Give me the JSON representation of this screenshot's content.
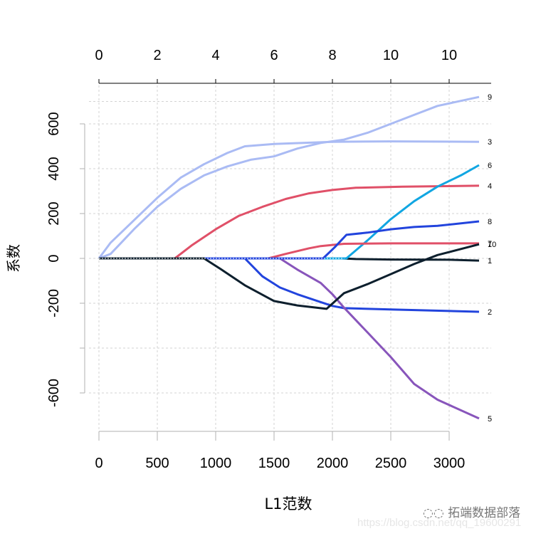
{
  "chart_data": {
    "type": "line",
    "title": "",
    "xlabel": "L1范数",
    "ylabel": "系数",
    "xlim": [
      0,
      3256
    ],
    "ylim": [
      -720,
      720
    ],
    "x_ticks": [
      0,
      500,
      1000,
      1500,
      2000,
      2500,
      3000
    ],
    "y_ticks": [
      600,
      400,
      200,
      0,
      -200,
      -400,
      -600
    ],
    "y_tick_labels": [
      "600",
      "400",
      "200",
      "0",
      "-200",
      "",
      "-600"
    ],
    "top_axis_ticks": [
      0,
      500,
      1000,
      1500,
      2000,
      2500,
      3000
    ],
    "top_axis_labels": [
      "0",
      "2",
      "4",
      "6",
      "8",
      "10",
      "10"
    ],
    "grid": true,
    "series": [
      {
        "name": "1",
        "color": "#0d1f2d",
        "points": [
          [
            0,
            0
          ],
          [
            2080,
            0
          ],
          [
            2200,
            -3
          ],
          [
            2500,
            -5
          ],
          [
            3000,
            -6
          ],
          [
            3256,
            -10
          ]
        ]
      },
      {
        "name": "2",
        "color": "#2244dd",
        "points": [
          [
            0,
            0
          ],
          [
            1250,
            0
          ],
          [
            1400,
            -80
          ],
          [
            1550,
            -130
          ],
          [
            1700,
            -160
          ],
          [
            1900,
            -195
          ],
          [
            2000,
            -212
          ],
          [
            2100,
            -222
          ],
          [
            2500,
            -228
          ],
          [
            3256,
            -238
          ]
        ]
      },
      {
        "name": "3",
        "color": "#aabbf4",
        "points": [
          [
            0,
            0
          ],
          [
            100,
            70
          ],
          [
            300,
            170
          ],
          [
            500,
            270
          ],
          [
            700,
            360
          ],
          [
            900,
            420
          ],
          [
            1100,
            470
          ],
          [
            1250,
            500
          ],
          [
            1500,
            510
          ],
          [
            2000,
            520
          ],
          [
            2500,
            522
          ],
          [
            3256,
            520
          ]
        ]
      },
      {
        "name": "4",
        "color": "#e05068",
        "points": [
          [
            0,
            0
          ],
          [
            650,
            0
          ],
          [
            800,
            60
          ],
          [
            1000,
            130
          ],
          [
            1200,
            190
          ],
          [
            1400,
            230
          ],
          [
            1600,
            265
          ],
          [
            1800,
            290
          ],
          [
            2000,
            305
          ],
          [
            2200,
            315
          ],
          [
            2600,
            320
          ],
          [
            3256,
            324
          ]
        ]
      },
      {
        "name": "5",
        "color": "#8855bb",
        "points": [
          [
            0,
            0
          ],
          [
            1550,
            0
          ],
          [
            1700,
            -50
          ],
          [
            1900,
            -110
          ],
          [
            2000,
            -160
          ],
          [
            2100,
            -220
          ],
          [
            2300,
            -330
          ],
          [
            2500,
            -440
          ],
          [
            2700,
            -560
          ],
          [
            2900,
            -630
          ],
          [
            3256,
            -714
          ]
        ]
      },
      {
        "name": "6",
        "color": "#11a6e2",
        "points": [
          [
            0,
            0
          ],
          [
            2120,
            0
          ],
          [
            2300,
            80
          ],
          [
            2500,
            175
          ],
          [
            2700,
            255
          ],
          [
            2900,
            320
          ],
          [
            3100,
            370
          ],
          [
            3256,
            416
          ]
        ]
      },
      {
        "name": "7",
        "color": "#e05068",
        "points": [
          [
            0,
            0
          ],
          [
            1450,
            0
          ],
          [
            1600,
            20
          ],
          [
            1800,
            45
          ],
          [
            1900,
            55
          ],
          [
            2000,
            60
          ],
          [
            2100,
            65
          ],
          [
            2500,
            67
          ],
          [
            3256,
            67
          ]
        ]
      },
      {
        "name": "8",
        "color": "#2244dd",
        "points": [
          [
            0,
            0
          ],
          [
            1920,
            0
          ],
          [
            2020,
            50
          ],
          [
            2120,
            105
          ],
          [
            2300,
            115
          ],
          [
            2500,
            130
          ],
          [
            2700,
            140
          ],
          [
            2900,
            145
          ],
          [
            3256,
            165
          ]
        ]
      },
      {
        "name": "9",
        "color": "#aabbf4",
        "points": [
          [
            0,
            0
          ],
          [
            100,
            20
          ],
          [
            300,
            130
          ],
          [
            500,
            230
          ],
          [
            700,
            310
          ],
          [
            900,
            370
          ],
          [
            1100,
            410
          ],
          [
            1300,
            440
          ],
          [
            1500,
            455
          ],
          [
            1700,
            490
          ],
          [
            1900,
            515
          ],
          [
            2100,
            530
          ],
          [
            2300,
            560
          ],
          [
            2500,
            600
          ],
          [
            2700,
            640
          ],
          [
            2900,
            680
          ],
          [
            3256,
            720
          ]
        ]
      },
      {
        "name": "10",
        "color": "#0d1f2d",
        "points": [
          [
            0,
            0
          ],
          [
            900,
            0
          ],
          [
            1050,
            -50
          ],
          [
            1250,
            -120
          ],
          [
            1500,
            -190
          ],
          [
            1700,
            -210
          ],
          [
            1950,
            -225
          ],
          [
            2100,
            -155
          ],
          [
            2300,
            -115
          ],
          [
            2500,
            -70
          ],
          [
            2700,
            -25
          ],
          [
            2900,
            15
          ],
          [
            3256,
            63
          ]
        ]
      }
    ],
    "line_end_labels": [
      "9",
      "3",
      "6",
      "4",
      "8",
      "7",
      "10",
      "1",
      "2",
      "5"
    ]
  },
  "labels": {
    "xlabel": "L1范数",
    "ylabel": "系数"
  },
  "watermark": {
    "logo_text": "拓端数据部落",
    "url_text": "https://blog.csdn.net/qq_19600291"
  }
}
